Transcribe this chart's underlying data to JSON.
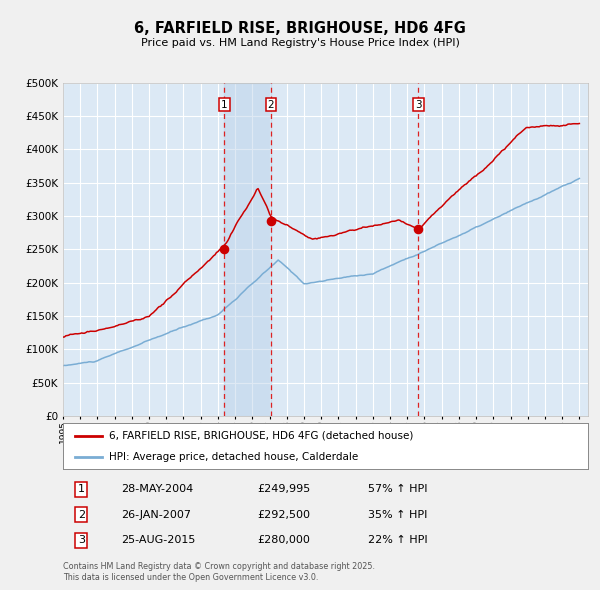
{
  "title": "6, FARFIELD RISE, BRIGHOUSE, HD6 4FG",
  "subtitle": "Price paid vs. HM Land Registry's House Price Index (HPI)",
  "fig_bg": "#f0f0f0",
  "plot_bg_color": "#dce9f5",
  "grid_color": "#ffffff",
  "red_line_color": "#cc0000",
  "blue_line_color": "#7aadd4",
  "sale_marker_color": "#cc0000",
  "dashed_line_color": "#dd2222",
  "shade_color": "#b8d0e8",
  "ylim": [
    0,
    500000
  ],
  "yticks": [
    0,
    50000,
    100000,
    150000,
    200000,
    250000,
    300000,
    350000,
    400000,
    450000,
    500000
  ],
  "year_start": 1995,
  "year_end": 2025,
  "sale1_year": 2004.38,
  "sale1_price": 249995,
  "sale2_year": 2007.07,
  "sale2_price": 292500,
  "sale3_year": 2015.65,
  "sale3_price": 280000,
  "sale1_label": "28-MAY-2004",
  "sale2_label": "26-JAN-2007",
  "sale3_label": "25-AUG-2015",
  "sale1_pct": "57% ↑ HPI",
  "sale2_pct": "35% ↑ HPI",
  "sale3_pct": "22% ↑ HPI",
  "legend_label1": "6, FARFIELD RISE, BRIGHOUSE, HD6 4FG (detached house)",
  "legend_label2": "HPI: Average price, detached house, Calderdale",
  "footer1": "Contains HM Land Registry data © Crown copyright and database right 2025.",
  "footer2": "This data is licensed under the Open Government Licence v3.0."
}
